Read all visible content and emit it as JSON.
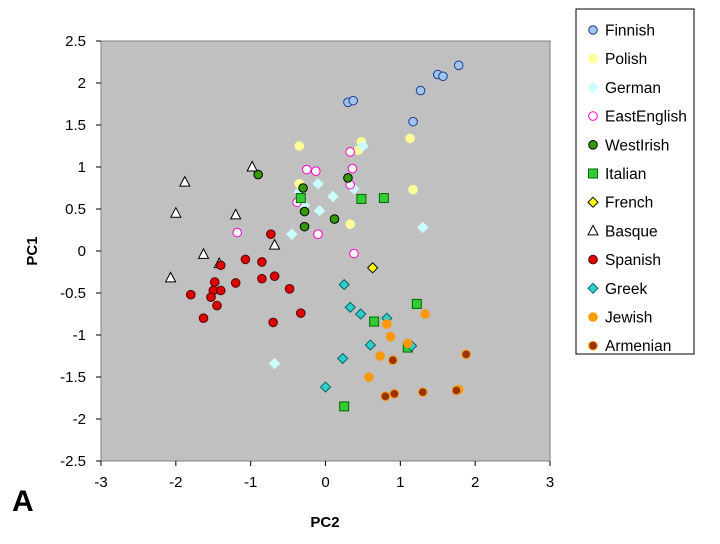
{
  "panel_label": "A",
  "chart_data": {
    "type": "scatter",
    "xlabel": "PC2",
    "ylabel": "PC1",
    "xlim": [
      -3,
      3
    ],
    "ylim": [
      -2.5,
      2.5
    ],
    "xticks": [
      -3,
      -2,
      -1,
      0,
      1,
      2,
      3
    ],
    "yticks": [
      -2.5,
      -2,
      -1.5,
      -1,
      -0.5,
      0,
      0.5,
      1,
      1.5,
      2,
      2.5
    ],
    "xtick_labels": [
      "-3",
      "-2",
      "-1",
      "0",
      "1",
      "2",
      "3"
    ],
    "ytick_labels": [
      "-2.5",
      "-2",
      "-1.5",
      "-1",
      "-0.5",
      "0",
      "0.5",
      "1",
      "1.5",
      "2",
      "2.5"
    ],
    "grid": false,
    "plot_background": "#c0c0c0",
    "legend_position": "right",
    "series": [
      {
        "name": "Finnish",
        "marker": "circle",
        "fill": "#9ec6ec",
        "stroke": "#1f3a93",
        "points": [
          [
            0.3,
            1.77
          ],
          [
            0.37,
            1.79
          ],
          [
            1.17,
            1.54
          ],
          [
            1.27,
            1.91
          ],
          [
            1.5,
            2.1
          ],
          [
            1.57,
            2.08
          ],
          [
            1.78,
            2.21
          ]
        ]
      },
      {
        "name": "Polish",
        "marker": "circle",
        "fill": "#ffff99",
        "stroke": "#ffff99",
        "points": [
          [
            -0.35,
            1.25
          ],
          [
            -0.35,
            0.8
          ],
          [
            0.33,
            0.32
          ],
          [
            0.48,
            1.3
          ],
          [
            1.13,
            1.34
          ],
          [
            1.17,
            0.73
          ],
          [
            0.44,
            1.2
          ]
        ]
      },
      {
        "name": "German",
        "marker": "diamond",
        "fill": "#ccffff",
        "stroke": "#ccffff",
        "points": [
          [
            -0.35,
            0.7
          ],
          [
            -0.28,
            0.54
          ],
          [
            -0.1,
            0.8
          ],
          [
            -0.08,
            0.48
          ],
          [
            0.1,
            0.65
          ],
          [
            0.38,
            0.74
          ],
          [
            -0.45,
            0.2
          ],
          [
            0.5,
            1.25
          ],
          [
            1.3,
            0.28
          ],
          [
            -0.68,
            -1.34
          ]
        ]
      },
      {
        "name": "EastEnglish",
        "marker": "circle",
        "fill": "#ffffff",
        "stroke": "#ff00cc",
        "points": [
          [
            -0.25,
            0.97
          ],
          [
            -0.13,
            0.95
          ],
          [
            0.33,
            1.18
          ],
          [
            0.36,
            0.98
          ],
          [
            0.33,
            0.79
          ],
          [
            -0.38,
            0.58
          ],
          [
            -0.1,
            0.2
          ],
          [
            -1.18,
            0.22
          ],
          [
            0.38,
            -0.03
          ]
        ]
      },
      {
        "name": "WestIrish",
        "marker": "circle",
        "fill": "#339900",
        "stroke": "#000000",
        "points": [
          [
            -0.9,
            0.91
          ],
          [
            -0.3,
            0.75
          ],
          [
            -0.28,
            0.47
          ],
          [
            -0.28,
            0.29
          ],
          [
            0.3,
            0.87
          ],
          [
            0.12,
            0.38
          ]
        ]
      },
      {
        "name": "Italian",
        "marker": "square",
        "fill": "#33cc33",
        "stroke": "#006600",
        "points": [
          [
            -0.33,
            0.63
          ],
          [
            0.48,
            0.62
          ],
          [
            0.78,
            0.63
          ],
          [
            1.22,
            -0.63
          ],
          [
            0.65,
            -0.84
          ],
          [
            1.1,
            -1.15
          ],
          [
            0.25,
            -1.85
          ]
        ]
      },
      {
        "name": "French",
        "marker": "diamond",
        "fill": "#ffff00",
        "stroke": "#000000",
        "points": [
          [
            0.63,
            -0.2
          ]
        ]
      },
      {
        "name": "Basque",
        "marker": "triangle",
        "fill": "#ffffff",
        "stroke": "#000000",
        "points": [
          [
            -0.98,
            1.0
          ],
          [
            -1.88,
            0.82
          ],
          [
            -2.0,
            0.45
          ],
          [
            -1.2,
            0.43
          ],
          [
            -0.68,
            0.07
          ],
          [
            -1.63,
            -0.04
          ],
          [
            -1.42,
            -0.15
          ],
          [
            -2.07,
            -0.32
          ]
        ]
      },
      {
        "name": "Spanish",
        "marker": "circle",
        "fill": "#dd0000",
        "stroke": "#550000",
        "points": [
          [
            -0.73,
            0.2
          ],
          [
            -1.07,
            -0.1
          ],
          [
            -0.85,
            -0.13
          ],
          [
            -1.4,
            -0.17
          ],
          [
            -1.48,
            -0.37
          ],
          [
            -1.5,
            -0.47
          ],
          [
            -1.4,
            -0.47
          ],
          [
            -1.53,
            -0.55
          ],
          [
            -1.2,
            -0.38
          ],
          [
            -0.85,
            -0.33
          ],
          [
            -0.68,
            -0.3
          ],
          [
            -0.48,
            -0.45
          ],
          [
            -1.8,
            -0.52
          ],
          [
            -1.45,
            -0.65
          ],
          [
            -1.63,
            -0.8
          ],
          [
            -0.7,
            -0.85
          ],
          [
            -0.33,
            -0.74
          ]
        ]
      },
      {
        "name": "Greek",
        "marker": "diamond",
        "fill": "#33cccc",
        "stroke": "#006666",
        "points": [
          [
            0.25,
            -0.4
          ],
          [
            0.33,
            -0.67
          ],
          [
            0.47,
            -0.75
          ],
          [
            0.82,
            -0.8
          ],
          [
            0.6,
            -1.12
          ],
          [
            1.15,
            -1.13
          ],
          [
            0.23,
            -1.28
          ],
          [
            0.0,
            -1.62
          ]
        ]
      },
      {
        "name": "Jewish",
        "marker": "circle",
        "fill": "#ff9900",
        "stroke": "#ff9900",
        "points": [
          [
            0.82,
            -0.87
          ],
          [
            0.87,
            -1.02
          ],
          [
            1.33,
            -0.75
          ],
          [
            1.1,
            -1.1
          ],
          [
            0.73,
            -1.25
          ],
          [
            0.58,
            -1.5
          ],
          [
            1.78,
            -1.65
          ]
        ]
      },
      {
        "name": "Armenian",
        "marker": "circle",
        "fill": "#993300",
        "stroke": "#ff9900",
        "points": [
          [
            0.9,
            -1.3
          ],
          [
            1.88,
            -1.23
          ],
          [
            1.3,
            -1.68
          ],
          [
            0.92,
            -1.7
          ],
          [
            0.8,
            -1.73
          ],
          [
            1.75,
            -1.66
          ]
        ]
      }
    ]
  }
}
